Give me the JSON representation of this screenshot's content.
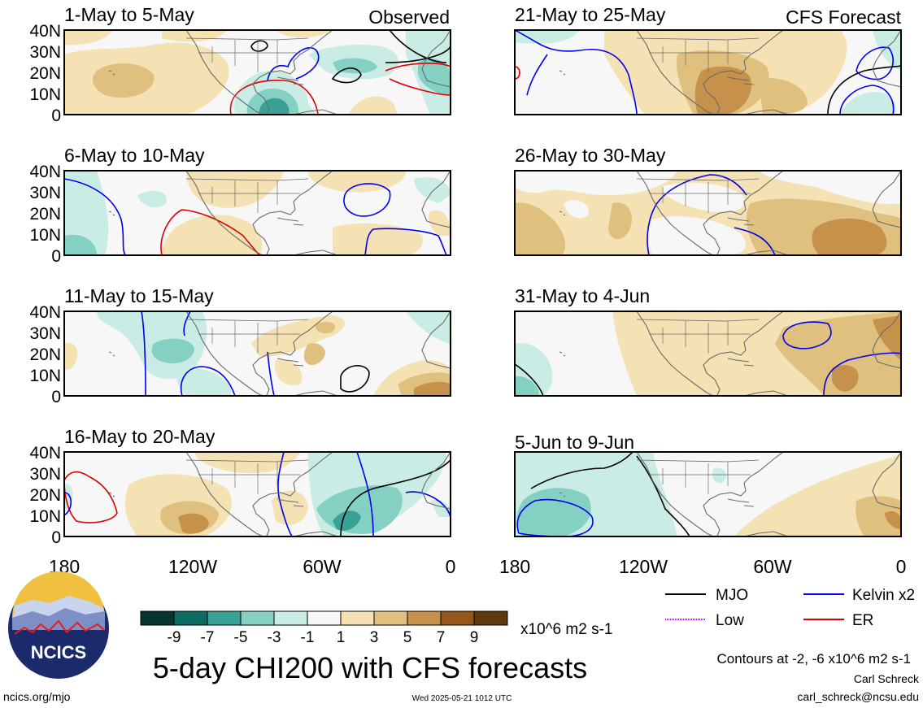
{
  "column_labels": {
    "left": "Observed",
    "right": "CFS Forecast"
  },
  "panels": [
    {
      "title": "1-May to 5-May"
    },
    {
      "title": "6-May to 10-May"
    },
    {
      "title": "11-May to 15-May"
    },
    {
      "title": "16-May to 20-May"
    },
    {
      "title": "21-May to 25-May"
    },
    {
      "title": "26-May to 30-May"
    },
    {
      "title": "31-May to 4-Jun"
    },
    {
      "title": "5-Jun to 9-Jun"
    }
  ],
  "lat_labels": [
    "40N",
    "30N",
    "20N",
    "10N",
    "0"
  ],
  "lon_labels": [
    "180",
    "120W",
    "60W",
    "0"
  ],
  "colorbar": {
    "ticks": [
      "-9",
      "-7",
      "-5",
      "-3",
      "-1",
      "1",
      "3",
      "5",
      "7",
      "9"
    ],
    "colors": [
      "#05352e",
      "#0e6d61",
      "#3aa196",
      "#84d1c3",
      "#c9ece5",
      "#f7f7f7",
      "#f5e2b4",
      "#dfc07e",
      "#c6914a",
      "#94581c",
      "#5c3a0e"
    ],
    "units": "x10^6 m2 s-1"
  },
  "legend": [
    {
      "label": "MJO",
      "color": "#000000"
    },
    {
      "label": "Kelvin x2",
      "color": "#0000ee"
    },
    {
      "label": "Low",
      "color": "#8a2be2"
    },
    {
      "label": "ER",
      "color": "#e00000"
    }
  ],
  "contour_note": "Contours at -2, -6 x10^6 m2 s-1",
  "main_title": "5-day CHI200 with CFS forecasts",
  "logo_text": "NCICS",
  "website": "ncics.org/mjo",
  "timestamp": "Wed 2025-05-21 1012 UTC",
  "author": "Carl Schreck",
  "email": "carl_schreck@ncsu.edu"
}
